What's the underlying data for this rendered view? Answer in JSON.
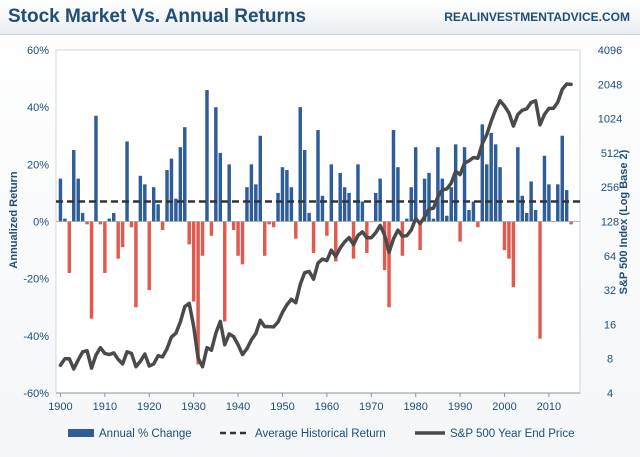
{
  "chart_data": {
    "type": "bar",
    "title": "Stock Market Vs. Annual Returns",
    "source": "REALINVESTMENTADVICE.COM",
    "ylabel_left": "Annualized Return",
    "ylabel_right": "S&P 500 Index (Log Base 2)",
    "xlim": [
      1899,
      2017
    ],
    "ylim_left": [
      -60,
      60
    ],
    "ylim_right": [
      4,
      4096
    ],
    "right_scale": "log2",
    "x_ticks": [
      1900,
      1910,
      1920,
      1930,
      1940,
      1950,
      1960,
      1970,
      1980,
      1990,
      2000,
      2010
    ],
    "y_left_ticks": [
      {
        "v": -60,
        "label": "-60%"
      },
      {
        "v": -40,
        "label": "-40%"
      },
      {
        "v": -20,
        "label": "-20%"
      },
      {
        "v": 0,
        "label": "0%"
      },
      {
        "v": 20,
        "label": "20%"
      },
      {
        "v": 40,
        "label": "40%"
      },
      {
        "v": 60,
        "label": "60%"
      }
    ],
    "y_right_ticks": [
      4,
      8,
      16,
      32,
      64,
      128,
      256,
      512,
      1024,
      2048,
      4096
    ],
    "legend": {
      "bars": "Annual % Change",
      "avg": "Average Historical Return",
      "line": "S&P 500 Year End Price"
    },
    "legend_position": "bottom",
    "grid": false,
    "colors": {
      "positive": "#2e5d9a",
      "negative": "#e05a4f",
      "price_line": "#4a4a4a",
      "average": "#333333",
      "axis_text": "#1f4e79"
    },
    "average_return": 7,
    "years": [
      1900,
      1901,
      1902,
      1903,
      1904,
      1905,
      1906,
      1907,
      1908,
      1909,
      1910,
      1911,
      1912,
      1913,
      1914,
      1915,
      1916,
      1917,
      1918,
      1919,
      1920,
      1921,
      1922,
      1923,
      1924,
      1925,
      1926,
      1927,
      1928,
      1929,
      1930,
      1931,
      1932,
      1933,
      1934,
      1935,
      1936,
      1937,
      1938,
      1939,
      1940,
      1941,
      1942,
      1943,
      1944,
      1945,
      1946,
      1947,
      1948,
      1949,
      1950,
      1951,
      1952,
      1953,
      1954,
      1955,
      1956,
      1957,
      1958,
      1959,
      1960,
      1961,
      1962,
      1963,
      1964,
      1965,
      1966,
      1967,
      1968,
      1969,
      1970,
      1971,
      1972,
      1973,
      1974,
      1975,
      1976,
      1977,
      1978,
      1979,
      1980,
      1981,
      1982,
      1983,
      1984,
      1985,
      1986,
      1987,
      1988,
      1989,
      1990,
      1991,
      1992,
      1993,
      1994,
      1995,
      1996,
      1997,
      1998,
      1999,
      2000,
      2001,
      2002,
      2003,
      2004,
      2005,
      2006,
      2007,
      2008,
      2009,
      2010,
      2011,
      2012,
      2013,
      2014,
      2015
    ],
    "annual_change": [
      15,
      1,
      -18,
      25,
      15,
      3,
      -1,
      -34,
      37,
      -1,
      -18,
      1,
      3,
      -13,
      -9,
      28,
      -2,
      -30,
      16,
      13,
      -24,
      12,
      6,
      -3,
      18,
      22,
      8,
      26,
      33,
      -8,
      -28,
      -50,
      -12,
      46,
      -5,
      40,
      24,
      -35,
      20,
      -3,
      -12,
      -15,
      12,
      20,
      13,
      30,
      -12,
      -1,
      -2,
      10,
      19,
      18,
      12,
      -6,
      40,
      25,
      3,
      -11,
      32,
      9,
      -5,
      20,
      -14,
      17,
      12,
      10,
      -13,
      20,
      7,
      -11,
      0,
      10,
      15,
      -17,
      -30,
      32,
      19,
      -12,
      1,
      12,
      26,
      -10,
      15,
      17,
      1,
      26,
      15,
      2,
      12,
      27,
      -7,
      26,
      4,
      7,
      -2,
      34,
      20,
      31,
      27,
      19,
      -10,
      -13,
      -23,
      26,
      9,
      3,
      14,
      4,
      -41,
      23,
      13,
      0,
      13,
      30,
      11,
      -1
    ],
    "price": [
      7.0,
      8.0,
      8.0,
      6.5,
      7.8,
      9.2,
      9.4,
      6.6,
      8.6,
      10.0,
      8.9,
      8.7,
      9.0,
      7.9,
      7.2,
      9.2,
      8.9,
      6.8,
      7.6,
      8.8,
      6.9,
      7.2,
      8.5,
      8.3,
      9.8,
      12.4,
      13.4,
      16.8,
      22.9,
      24.5,
      15.4,
      8.1,
      6.8,
      10.0,
      9.5,
      13.4,
      17.0,
      10.6,
      13.2,
      12.5,
      10.6,
      8.7,
      9.8,
      11.7,
      13.3,
      17.4,
      15.3,
      15.3,
      15.2,
      16.8,
      20.4,
      23.8,
      26.6,
      24.8,
      35.9,
      45.5,
      46.7,
      39.9,
      55.2,
      59.9,
      58.1,
      71.6,
      63.1,
      75.0,
      84.8,
      92.4,
      80.3,
      96.5,
      103.9,
      92.1,
      92.2,
      102.1,
      118.1,
      97.6,
      68.6,
      90.2,
      107.5,
      95.1,
      96.1,
      107.9,
      135.8,
      122.6,
      140.6,
      164.9,
      167.2,
      211.3,
      242.2,
      247.1,
      277.7,
      353.4,
      330.2,
      417.1,
      435.7,
      466.5,
      459.3,
      615.9,
      740.7,
      970.4,
      1229.2,
      1469.3,
      1320.3,
      1148.1,
      879.8,
      1111.9,
      1211.9,
      1248.3,
      1418.3,
      1468.4,
      903.3,
      1115.1,
      1257.6,
      1257.6,
      1426.2,
      1848.4,
      2058.9,
      2043.9
    ]
  }
}
